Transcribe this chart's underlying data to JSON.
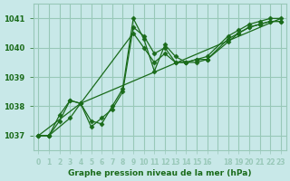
{
  "title": "Graphe pression niveau de la mer (hPa)",
  "background_color": "#c8e8e8",
  "grid_color": "#98c8b8",
  "line_color": "#1a6b1a",
  "marker_color": "#1a6b1a",
  "xlabel_color": "#1a6b1a",
  "series": [
    {
      "x": [
        0,
        1,
        2,
        3,
        4,
        5,
        6,
        7,
        8,
        9,
        10,
        11,
        12,
        13,
        14,
        15,
        16,
        18,
        19,
        20,
        21,
        22,
        23
      ],
      "y": [
        1037.0,
        1037.0,
        1037.5,
        1038.2,
        1038.1,
        1037.3,
        1037.6,
        1037.9,
        1038.5,
        1040.7,
        1040.4,
        1039.8,
        1040.0,
        1039.5,
        1039.5,
        1039.6,
        1039.6,
        1040.2,
        1040.5,
        1040.7,
        1040.8,
        1040.9,
        1040.9
      ]
    },
    {
      "x": [
        0,
        1,
        3,
        4,
        9,
        10,
        11,
        12,
        13,
        14,
        15,
        16,
        18,
        19,
        20,
        21,
        22,
        23
      ],
      "y": [
        1037.0,
        1037.0,
        1037.6,
        1038.1,
        1040.5,
        1040.0,
        1039.5,
        1039.8,
        1039.5,
        1039.5,
        1039.5,
        1039.6,
        1040.3,
        1040.5,
        1040.7,
        1040.8,
        1040.9,
        1040.9
      ]
    },
    {
      "x": [
        0,
        1,
        2,
        3,
        4,
        5,
        6,
        7,
        8,
        9,
        10,
        11,
        12,
        13,
        14,
        15,
        16,
        18,
        19,
        20,
        21,
        22,
        23
      ],
      "y": [
        1037.0,
        1037.0,
        1037.7,
        1038.2,
        1038.1,
        1037.5,
        1037.4,
        1038.0,
        1038.6,
        1041.0,
        1040.3,
        1039.2,
        1040.1,
        1039.7,
        1039.5,
        1039.6,
        1039.7,
        1040.4,
        1040.6,
        1040.8,
        1040.9,
        1041.0,
        1041.0
      ]
    },
    {
      "x": [
        0,
        4,
        23
      ],
      "y": [
        1037.0,
        1038.1,
        1041.0
      ]
    }
  ],
  "xlim": [
    -0.5,
    23.5
  ],
  "ylim": [
    1036.5,
    1041.5
  ],
  "yticks": [
    1037,
    1038,
    1039,
    1040,
    1041
  ],
  "xticks": [
    0,
    1,
    2,
    3,
    4,
    5,
    6,
    7,
    8,
    9,
    10,
    11,
    12,
    13,
    14,
    15,
    16,
    17,
    18,
    19,
    20,
    21,
    22,
    23
  ],
  "xtick_labels": [
    "0",
    "1",
    "2",
    "3",
    "4",
    "5",
    "6",
    "7",
    "8",
    "9",
    "10",
    "11",
    "12",
    "13",
    "14",
    "15",
    "16",
    "",
    "18",
    "19",
    "20",
    "21",
    "22",
    "23"
  ]
}
